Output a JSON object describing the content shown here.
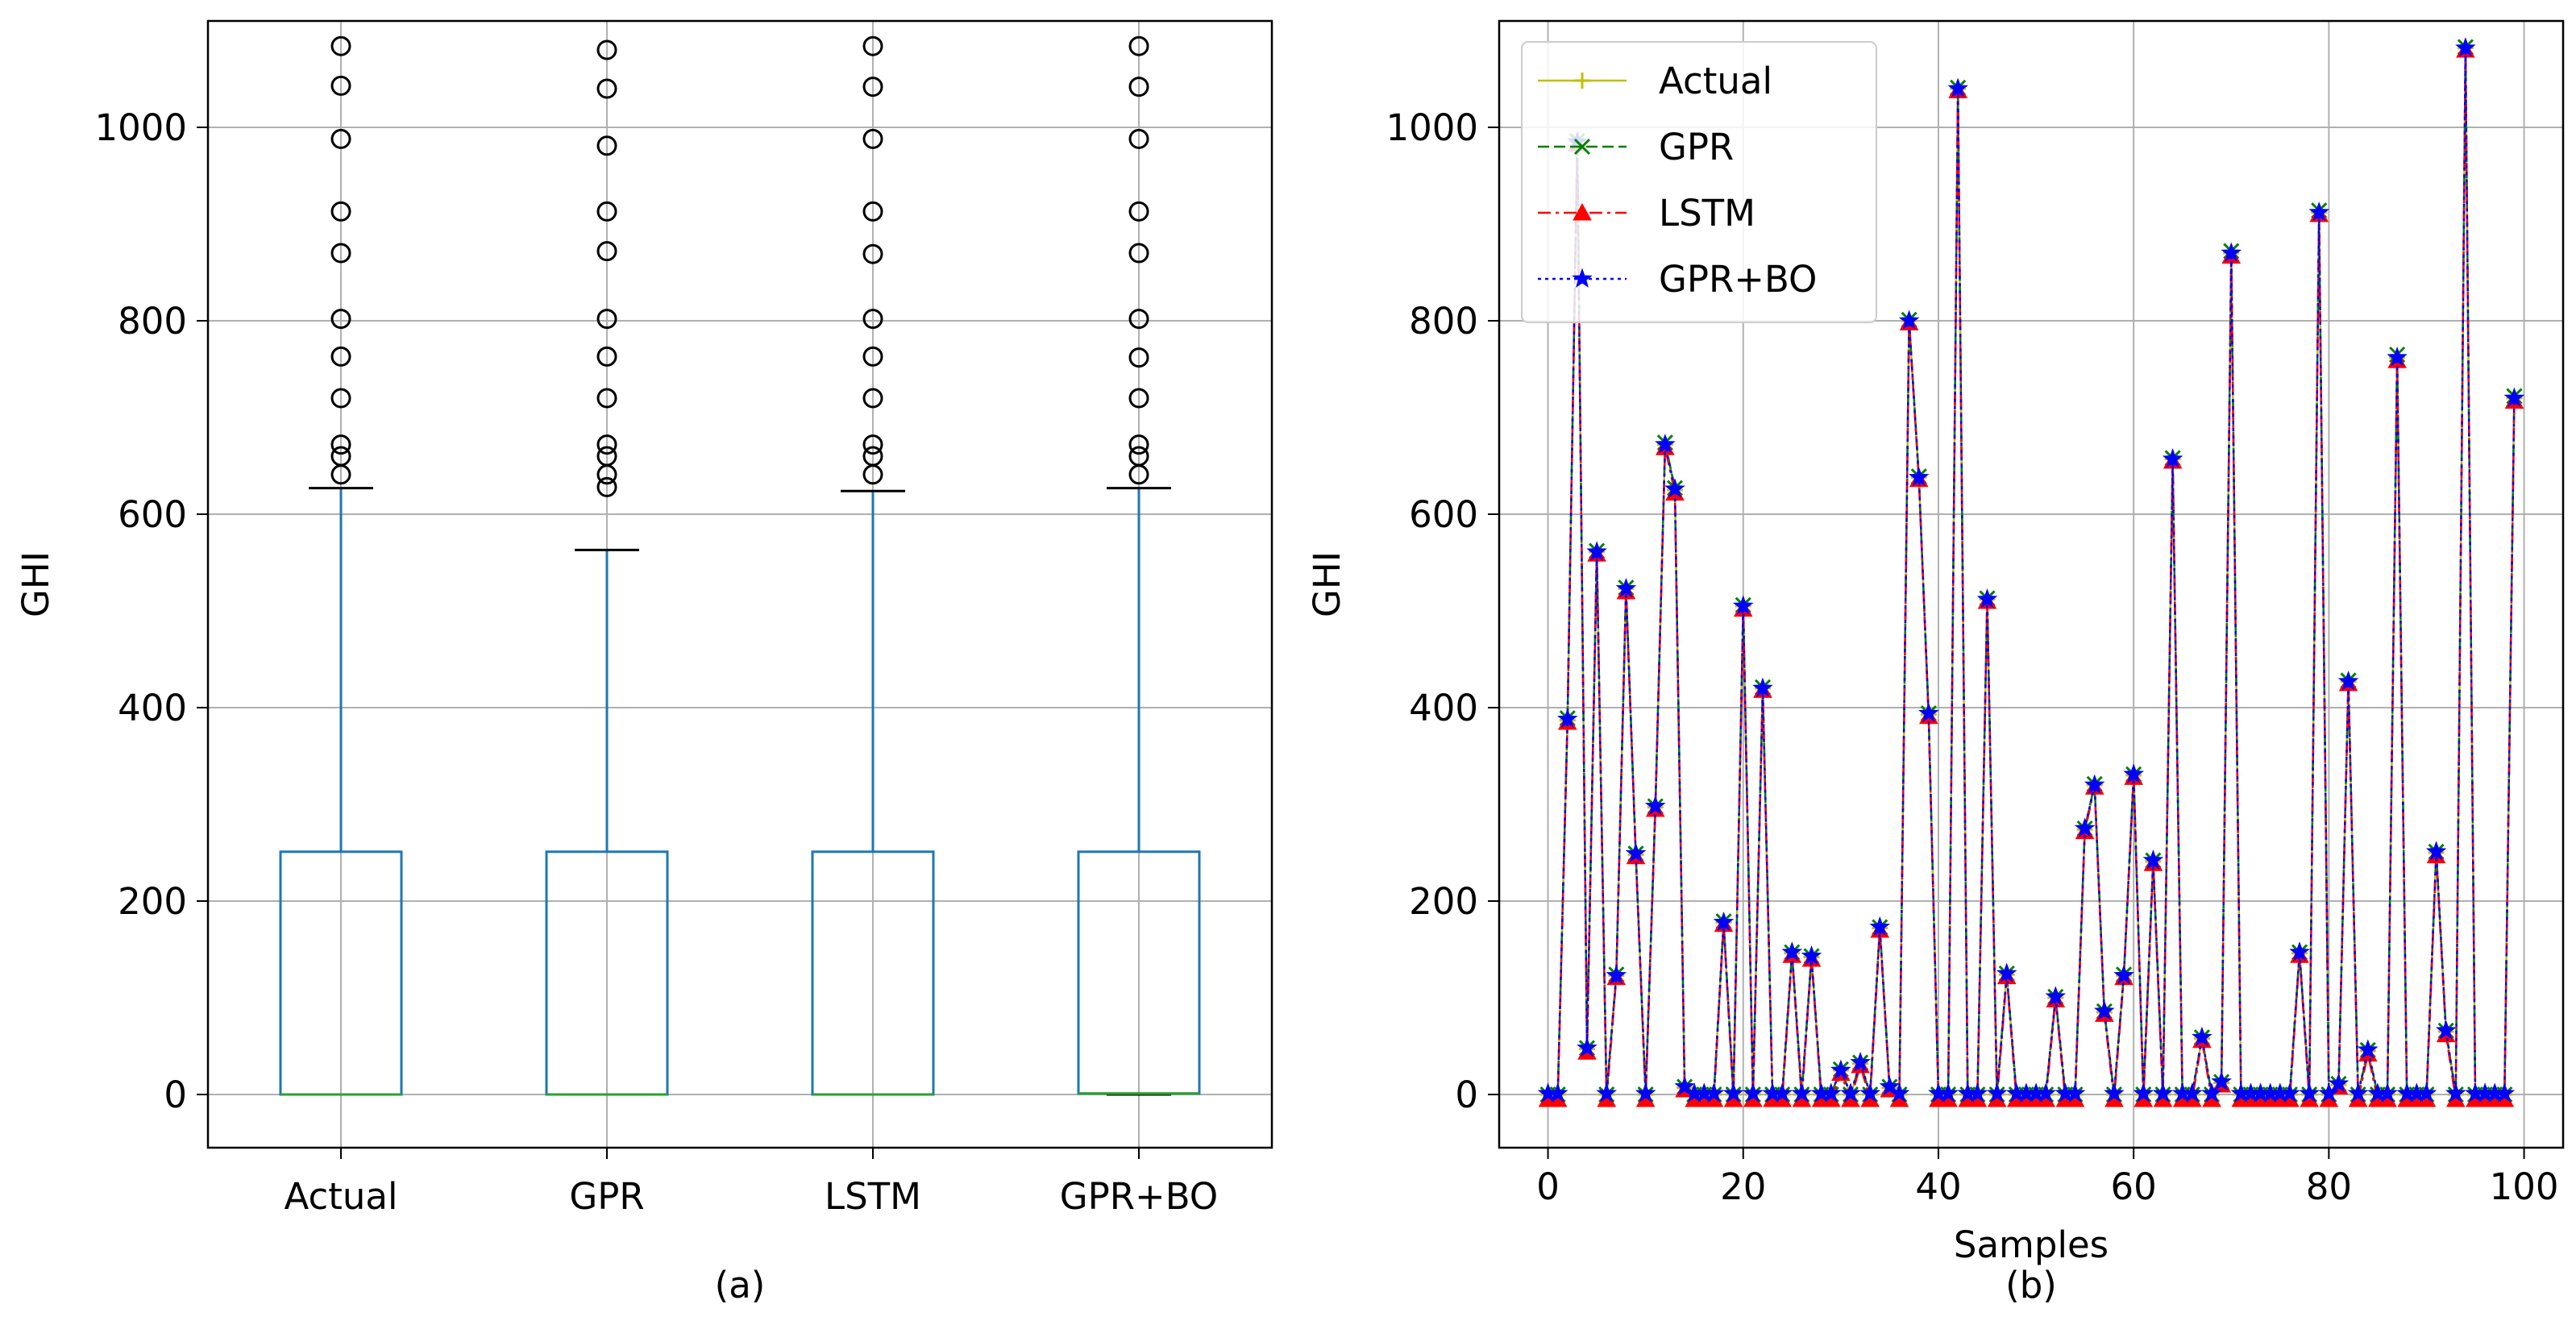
{
  "chart_data": [
    {
      "type": "box",
      "panel_label": "(a)",
      "ylabel": "GHI",
      "ylim": [
        -55,
        1110
      ],
      "yticks": [
        0,
        200,
        400,
        600,
        800,
        1000
      ],
      "grid": true,
      "categories": [
        "Actual",
        "GPR",
        "LSTM",
        "GPR+BO"
      ],
      "boxes": [
        {
          "name": "Actual",
          "whisker_low": 0,
          "q1": 0,
          "median": 0,
          "q3": 251,
          "whisker_high": 627,
          "fliers": [
            1084,
            1043,
            988,
            913,
            870,
            802,
            763,
            720,
            672,
            660,
            641
          ]
        },
        {
          "name": "GPR",
          "whisker_low": 0,
          "q1": 0,
          "median": 0,
          "q3": 251,
          "whisker_high": 563,
          "fliers": [
            1080,
            1040,
            981,
            913,
            872,
            802,
            763,
            720,
            672,
            660,
            641,
            628
          ]
        },
        {
          "name": "LSTM",
          "whisker_low": 0,
          "q1": 0,
          "median": 0,
          "q3": 251,
          "whisker_high": 624,
          "fliers": [
            1084,
            1042,
            988,
            913,
            869,
            802,
            763,
            720,
            672,
            660,
            641
          ]
        },
        {
          "name": "GPR+BO",
          "whisker_low": 0,
          "q1": 1,
          "median": 1,
          "q3": 251,
          "whisker_high": 627,
          "fliers": [
            1084,
            1042,
            988,
            913,
            870,
            802,
            762,
            720,
            672,
            660,
            641
          ]
        }
      ],
      "colors": {
        "box": "#1f77b4",
        "median": "#2ca02c",
        "flier": "#000000"
      }
    },
    {
      "type": "line",
      "panel_label": "(b)",
      "xlabel": "Samples",
      "ylabel": "GHI",
      "xlim": [
        -5,
        104
      ],
      "ylim": [
        -55,
        1110
      ],
      "xticks": [
        0,
        20,
        40,
        60,
        80,
        100
      ],
      "yticks": [
        0,
        200,
        400,
        600,
        800,
        1000
      ],
      "grid": true,
      "legend_position": "top-left",
      "x": [
        0,
        1,
        2,
        3,
        4,
        5,
        6,
        7,
        8,
        9,
        10,
        11,
        12,
        13,
        14,
        15,
        16,
        17,
        18,
        19,
        20,
        21,
        22,
        23,
        24,
        25,
        26,
        27,
        28,
        29,
        30,
        31,
        32,
        33,
        34,
        35,
        36,
        37,
        38,
        39,
        40,
        41,
        42,
        43,
        44,
        45,
        46,
        47,
        48,
        49,
        50,
        51,
        52,
        53,
        54,
        55,
        56,
        57,
        58,
        59,
        60,
        61,
        62,
        63,
        64,
        65,
        66,
        67,
        68,
        69,
        70,
        71,
        72,
        73,
        74,
        75,
        76,
        77,
        78,
        79,
        80,
        81,
        82,
        83,
        84,
        85,
        86,
        87,
        88,
        89,
        90,
        91,
        92,
        93,
        94,
        95,
        96,
        97,
        98,
        99
      ],
      "series": [
        {
          "name": "Actual",
          "color": "#bfbf00",
          "marker": "+",
          "linestyle": "solid",
          "values": [
            0,
            0,
            387,
            985,
            47,
            561,
            0,
            123,
            523,
            248,
            0,
            297,
            672,
            625,
            7,
            0,
            0,
            0,
            178,
            0,
            505,
            0,
            420,
            0,
            0,
            146,
            0,
            142,
            0,
            0,
            25,
            0,
            32,
            0,
            172,
            7,
            0,
            800,
            638,
            393,
            0,
            0,
            1040,
            0,
            0,
            512,
            0,
            124,
            0,
            0,
            0,
            0,
            100,
            0,
            0,
            274,
            320,
            85,
            0,
            123,
            330,
            0,
            241,
            0,
            657,
            0,
            0,
            58,
            0,
            12,
            870,
            0,
            0,
            0,
            0,
            0,
            0,
            146,
            0,
            912,
            0,
            10,
            427,
            0,
            45,
            0,
            0,
            762,
            0,
            0,
            0,
            250,
            65,
            0,
            1082,
            0,
            0,
            0,
            0,
            720
          ]
        },
        {
          "name": "GPR",
          "color": "#008000",
          "marker": "x",
          "linestyle": "dashed",
          "values": [
            0,
            0,
            389,
            986,
            48,
            562,
            0,
            124,
            524,
            249,
            0,
            298,
            674,
            627,
            8,
            0,
            0,
            0,
            179,
            0,
            506,
            0,
            421,
            0,
            0,
            147,
            0,
            143,
            0,
            0,
            26,
            0,
            33,
            0,
            173,
            8,
            0,
            801,
            639,
            394,
            0,
            0,
            1041,
            0,
            0,
            513,
            0,
            125,
            0,
            0,
            0,
            0,
            101,
            0,
            0,
            275,
            321,
            86,
            0,
            124,
            331,
            0,
            242,
            0,
            658,
            0,
            0,
            59,
            0,
            13,
            872,
            0,
            0,
            0,
            0,
            0,
            0,
            147,
            0,
            914,
            0,
            11,
            428,
            0,
            46,
            0,
            0,
            765,
            0,
            0,
            0,
            251,
            66,
            0,
            1083,
            0,
            0,
            0,
            0,
            722
          ]
        },
        {
          "name": "LSTM",
          "color": "#ff0000",
          "marker": "^",
          "linestyle": "dashdot",
          "values": [
            -5,
            -5,
            385,
            983,
            44,
            559,
            -5,
            121,
            520,
            246,
            -5,
            295,
            669,
            622,
            5,
            -5,
            -5,
            -5,
            176,
            -5,
            502,
            -5,
            418,
            -5,
            -5,
            144,
            -5,
            140,
            -5,
            -5,
            22,
            -5,
            30,
            -5,
            170,
            5,
            -5,
            798,
            636,
            391,
            -5,
            -5,
            1038,
            -5,
            -5,
            510,
            -5,
            122,
            -5,
            -5,
            -5,
            -5,
            98,
            -5,
            -5,
            272,
            318,
            83,
            -5,
            121,
            328,
            -5,
            239,
            -5,
            655,
            -5,
            -5,
            56,
            -5,
            10,
            867,
            -5,
            -5,
            -5,
            -5,
            -5,
            -5,
            144,
            -5,
            910,
            -5,
            8,
            425,
            -5,
            42,
            -5,
            -5,
            759,
            -5,
            -5,
            -5,
            247,
            62,
            -5,
            1080,
            -5,
            -5,
            -5,
            -5,
            717
          ]
        },
        {
          "name": "GPR+BO",
          "color": "#0000ff",
          "marker": "*",
          "linestyle": "dotted",
          "values": [
            1,
            1,
            388,
            985,
            48,
            561,
            1,
            123,
            523,
            249,
            1,
            298,
            672,
            626,
            8,
            1,
            1,
            1,
            178,
            1,
            505,
            1,
            420,
            1,
            1,
            147,
            1,
            143,
            1,
            1,
            25,
            1,
            33,
            1,
            173,
            8,
            1,
            800,
            638,
            394,
            1,
            1,
            1040,
            1,
            1,
            512,
            1,
            125,
            1,
            1,
            1,
            1,
            101,
            1,
            1,
            275,
            320,
            86,
            1,
            123,
            331,
            1,
            242,
            1,
            657,
            1,
            1,
            59,
            1,
            13,
            870,
            1,
            1,
            1,
            1,
            1,
            1,
            147,
            1,
            912,
            1,
            11,
            427,
            1,
            46,
            1,
            1,
            762,
            1,
            1,
            1,
            251,
            66,
            1,
            1082,
            1,
            1,
            1,
            1,
            720
          ]
        }
      ]
    }
  ]
}
